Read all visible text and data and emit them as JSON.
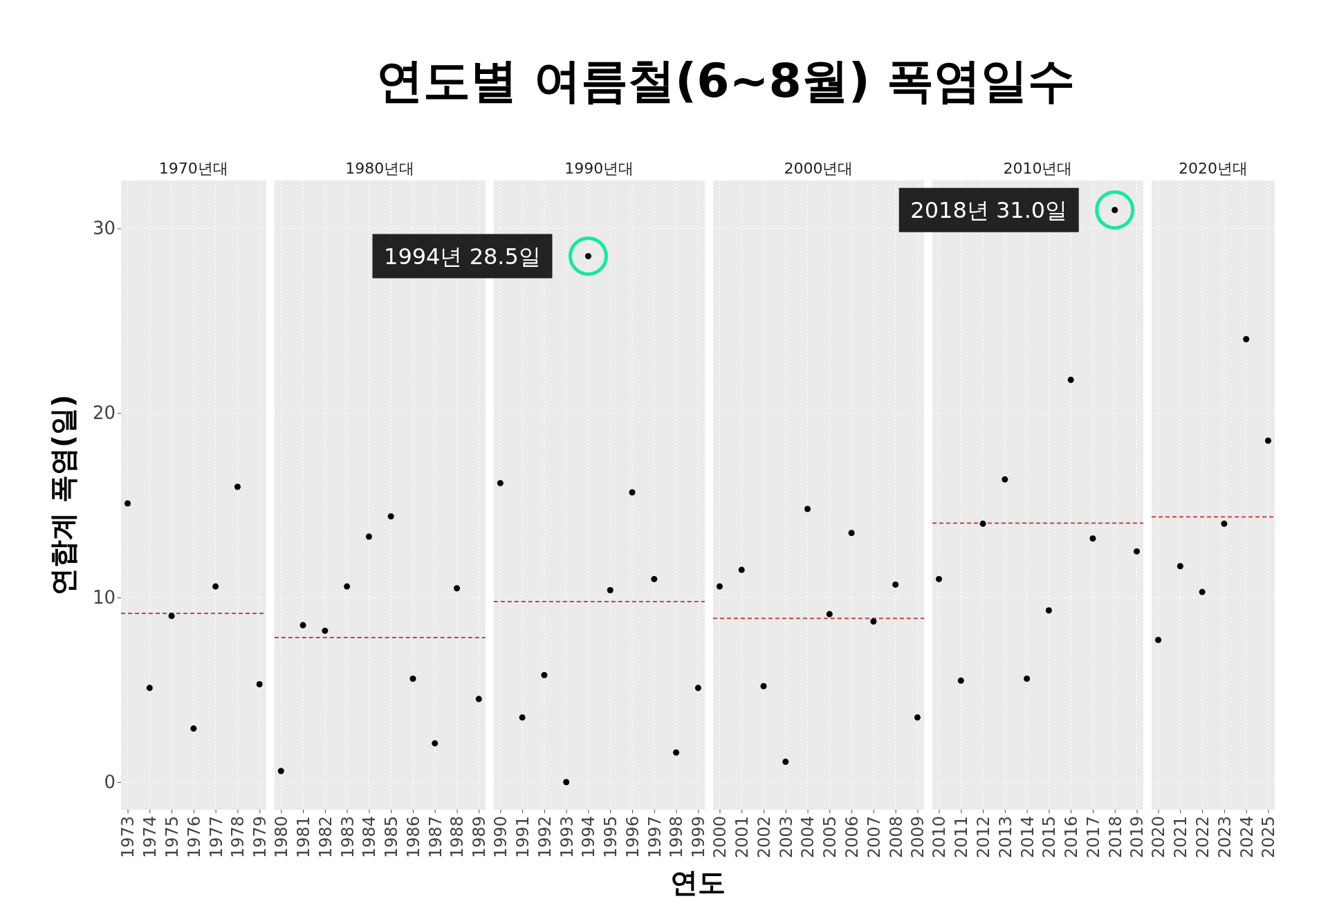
{
  "chart_data": [
    {
      "type": "other",
      "title": "연도별 여름철(6~8월) 폭염일수",
      "xlabel": "연도"
    },
    {
      "type": "scatter",
      "subtitle": "1970년대",
      "ylabel": "연합계 폭염(일)",
      "categories": [
        "1973",
        "1974",
        "1975",
        "1976",
        "1977",
        "1978",
        "1979"
      ],
      "values": [
        15.1,
        5.1,
        9.0,
        2.9,
        10.6,
        16.0,
        5.3
      ],
      "color": "#000000",
      "ylim": [
        -1.5,
        32.6
      ],
      "yticks": [
        0,
        10,
        20,
        30
      ],
      "grid": true,
      "marker": "circle",
      "ref_lines": [
        {
          "axis": "y",
          "value": 9.14,
          "color": "#c8423a",
          "line_style": "dashed"
        }
      ]
    },
    {
      "type": "scatter",
      "subtitle": "1980년대",
      "categories": [
        "1980",
        "1981",
        "1982",
        "1983",
        "1984",
        "1985",
        "1986",
        "1987",
        "1988",
        "1989"
      ],
      "values": [
        0.6,
        8.5,
        8.2,
        10.6,
        13.3,
        14.4,
        5.6,
        2.1,
        10.5,
        4.5
      ],
      "color": "#000000",
      "ylim": [
        -1.5,
        32.6
      ],
      "yticks": [
        0,
        10,
        20,
        30
      ],
      "tick_labels": "x",
      "grid": true,
      "marker": "circle",
      "ref_lines": [
        {
          "axis": "y",
          "value": 7.83,
          "color": "#c8423a",
          "line_style": "dashed"
        }
      ]
    },
    {
      "type": "scatter",
      "subtitle": "1990년대",
      "categories": [
        "1990",
        "1991",
        "1992",
        "1993",
        "1994",
        "1995",
        "1996",
        "1997",
        "1998",
        "1999"
      ],
      "values": [
        16.2,
        3.5,
        5.8,
        0,
        28.5,
        10.4,
        15.7,
        11.0,
        1.6,
        5.1
      ],
      "color": "#000000",
      "ylim": [
        -1.5,
        32.6
      ],
      "yticks": [
        0,
        10,
        20,
        30
      ],
      "tick_labels": "x",
      "grid": true,
      "marker": "circle",
      "ref_lines": [
        {
          "axis": "y",
          "value": 9.78,
          "color": "#c8423a",
          "line_style": "dashed"
        }
      ],
      "annotations": [
        {
          "text": "1994년 28.5일",
          "x": "1994",
          "y": 28.5
        }
      ]
    },
    {
      "type": "scatter",
      "subtitle": "2000년대",
      "categories": [
        "2000",
        "2001",
        "2002",
        "2003",
        "2004",
        "2005",
        "2006",
        "2007",
        "2008",
        "2009"
      ],
      "values": [
        10.6,
        11.5,
        5.2,
        1.1,
        14.8,
        9.1,
        13.5,
        8.7,
        10.7,
        3.5
      ],
      "color": "#000000",
      "ylim": [
        -1.5,
        32.6
      ],
      "yticks": [
        0,
        10,
        20,
        30
      ],
      "tick_labels": "x",
      "grid": true,
      "marker": "circle",
      "ref_lines": [
        {
          "axis": "y",
          "value": 8.87,
          "color": "#c8423a",
          "line_style": "dashed"
        }
      ]
    },
    {
      "type": "scatter",
      "subtitle": "2010년대",
      "categories": [
        "2010",
        "2011",
        "2012",
        "2013",
        "2014",
        "2015",
        "2016",
        "2017",
        "2018",
        "2019"
      ],
      "values": [
        11.0,
        5.5,
        14.0,
        16.4,
        5.6,
        9.3,
        21.8,
        13.2,
        31.0,
        12.5
      ],
      "color": "#000000",
      "ylim": [
        -1.5,
        32.6
      ],
      "yticks": [
        0,
        10,
        20,
        30
      ],
      "tick_labels": "x",
      "grid": true,
      "marker": "circle",
      "ref_lines": [
        {
          "axis": "y",
          "value": 14.03,
          "color": "#c8423a",
          "line_style": "dashed"
        }
      ],
      "annotations": [
        {
          "text": "2018년 31.0일",
          "x": "2018",
          "y": 31.0
        }
      ]
    },
    {
      "type": "scatter",
      "subtitle": "2020년대",
      "categories": [
        "2020",
        "2021",
        "2022",
        "2023",
        "2024",
        "2025"
      ],
      "values": [
        7.7,
        11.7,
        10.3,
        14.0,
        24.0,
        18.5
      ],
      "color": "#000000",
      "ylim": [
        -1.5,
        32.6
      ],
      "yticks": [
        0,
        10,
        20,
        30
      ],
      "tick_labels": "x",
      "grid": true,
      "marker": "circle",
      "ref_lines": [
        {
          "axis": "y",
          "value": 14.37,
          "color": "#c8423a",
          "line_style": "dashed"
        }
      ]
    }
  ]
}
